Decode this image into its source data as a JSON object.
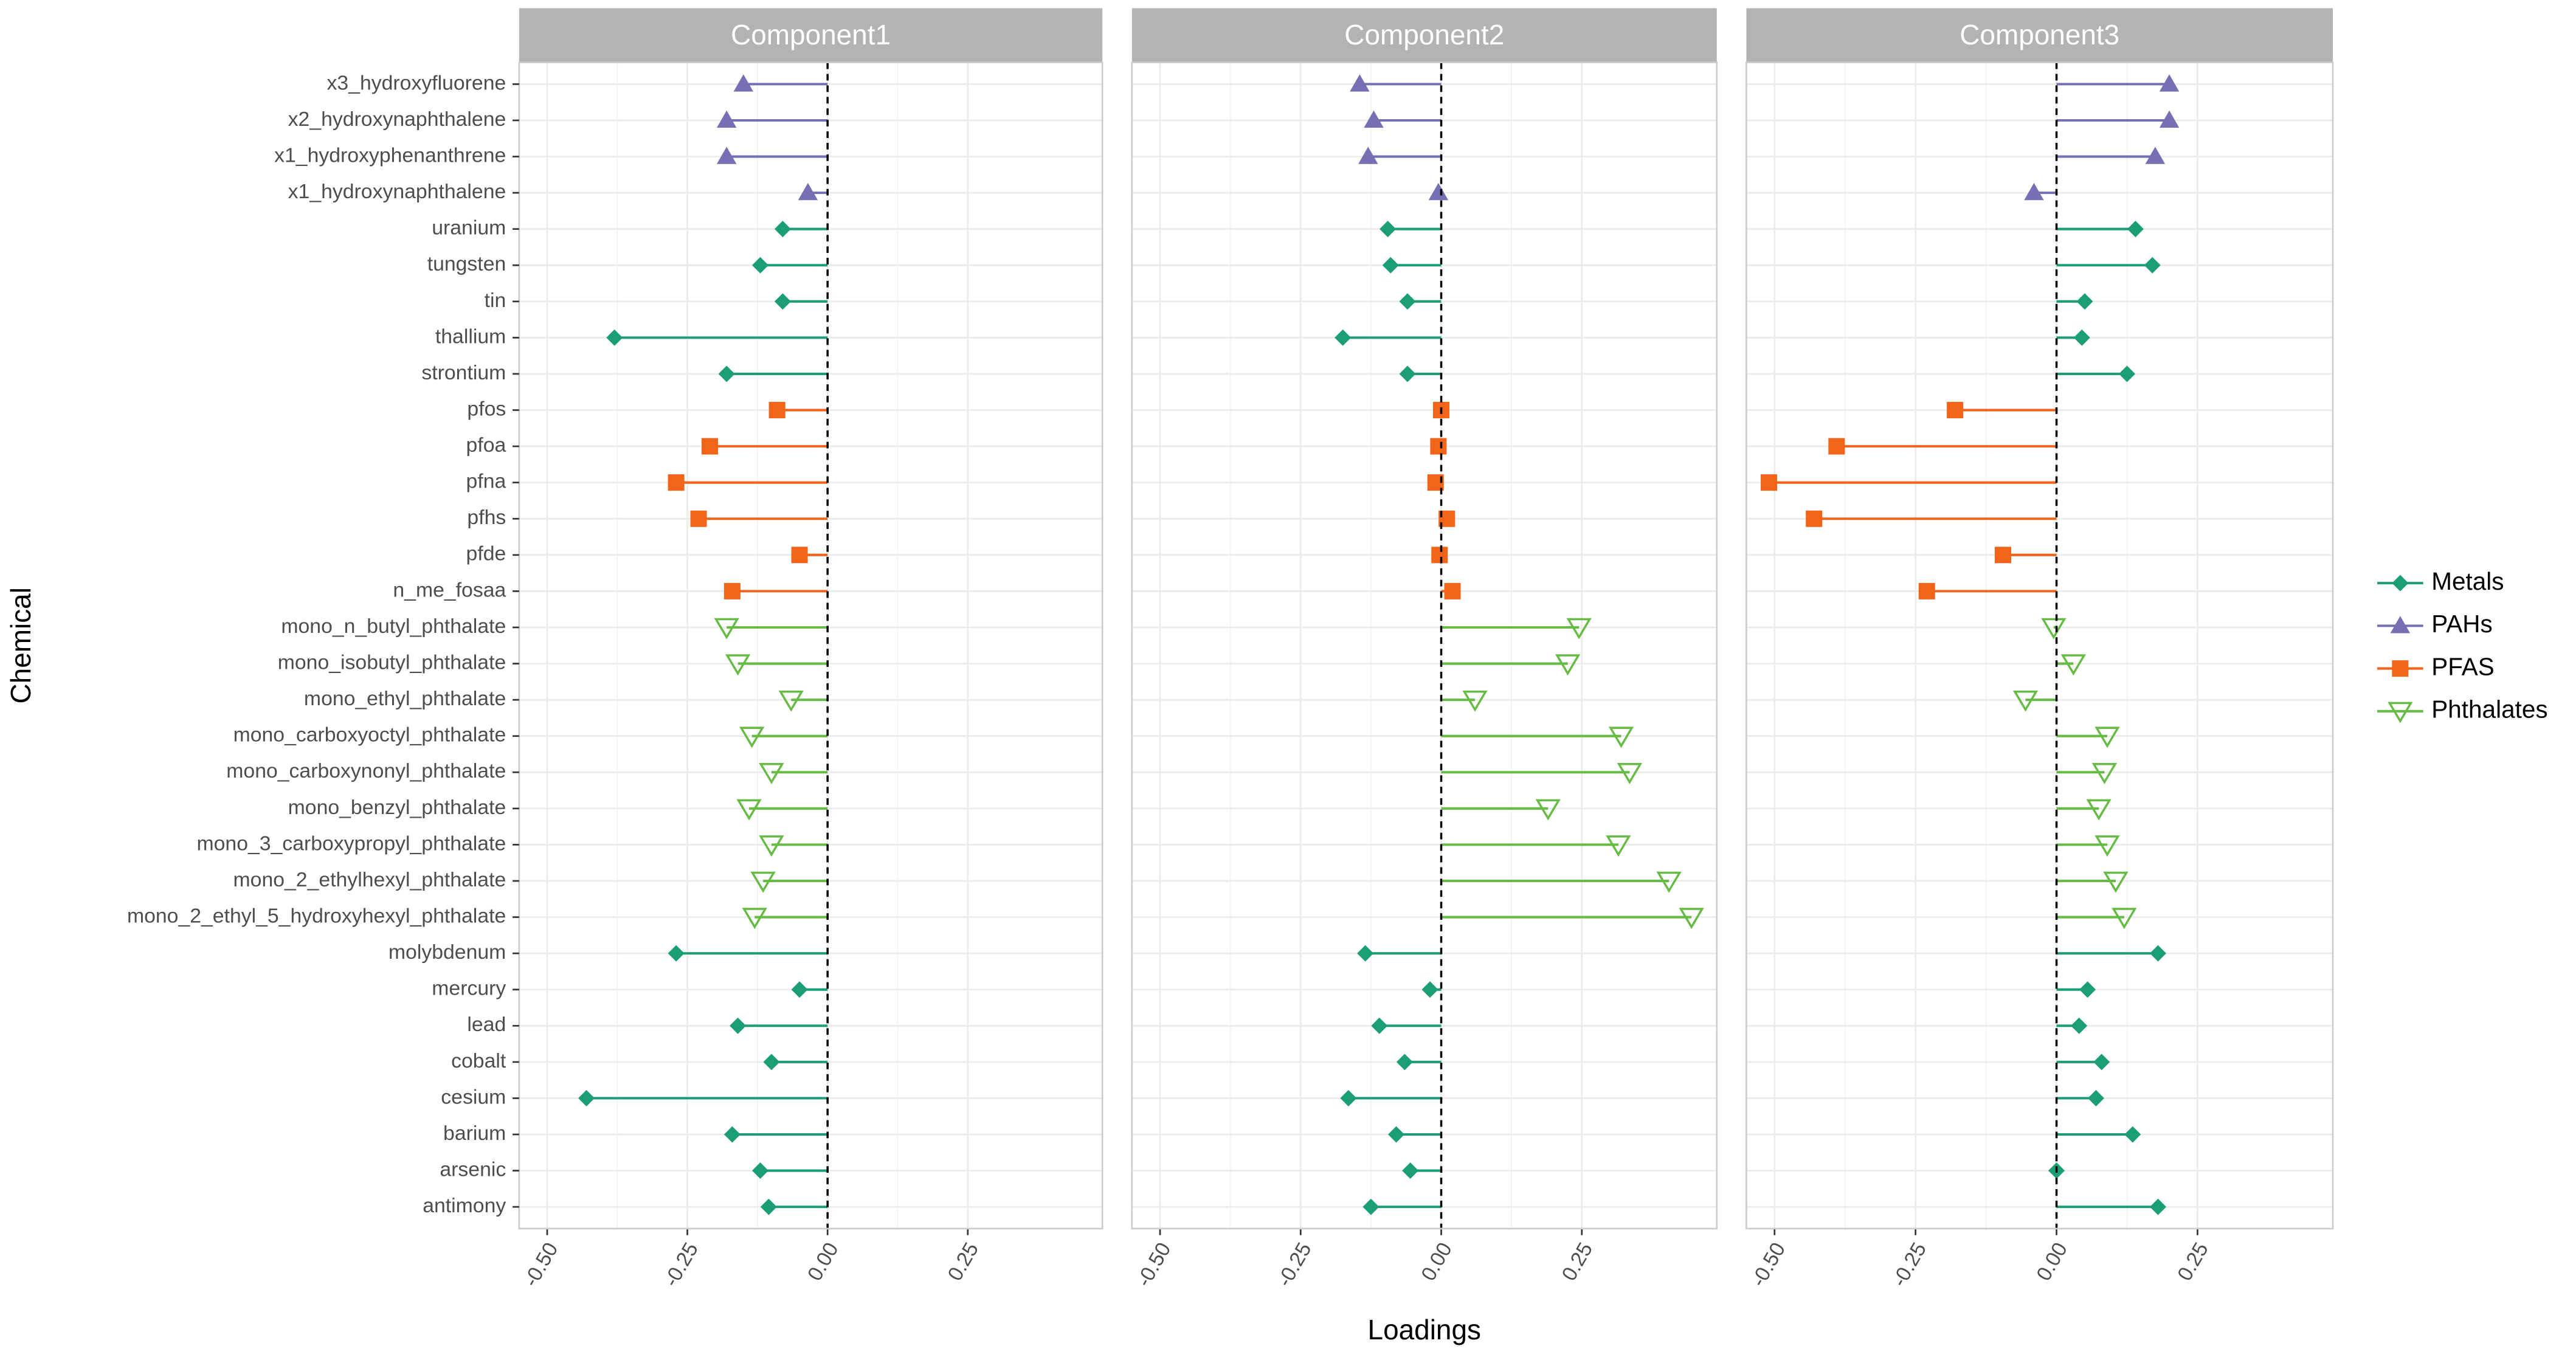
{
  "chart_data": {
    "type": "lollipop",
    "x_label": "Loadings",
    "y_label": "Chemical",
    "xlim": [
      -0.55,
      0.49
    ],
    "xticks": [
      {
        "value": -0.5,
        "label": "-0.50"
      },
      {
        "value": -0.25,
        "label": "-0.25"
      },
      {
        "value": 0,
        "label": "0.00"
      },
      {
        "value": 0.25,
        "label": "0.25"
      }
    ],
    "grid": true,
    "vline": 0,
    "legend_position": "right",
    "categories": [
      "x3_hydroxyfluorene",
      "x2_hydroxynaphthalene",
      "x1_hydroxyphenanthrene",
      "x1_hydroxynaphthalene",
      "uranium",
      "tungsten",
      "tin",
      "thallium",
      "strontium",
      "pfos",
      "pfoa",
      "pfna",
      "pfhs",
      "pfde",
      "n_me_fosaa",
      "mono_n_butyl_phthalate",
      "mono_isobutyl_phthalate",
      "mono_ethyl_phthalate",
      "mono_carboxyoctyl_phthalate",
      "mono_carboxynonyl_phthalate",
      "mono_benzyl_phthalate",
      "mono_3_carboxypropyl_phthalate",
      "mono_2_ethylhexyl_phthalate",
      "mono_2_ethyl_5_hydroxyhexyl_phthalate",
      "molybdenum",
      "mercury",
      "lead",
      "cobalt",
      "cesium",
      "barium",
      "arsenic",
      "antimony"
    ],
    "groups": [
      "PAHs",
      "PAHs",
      "PAHs",
      "PAHs",
      "Metals",
      "Metals",
      "Metals",
      "Metals",
      "Metals",
      "PFAS",
      "PFAS",
      "PFAS",
      "PFAS",
      "PFAS",
      "PFAS",
      "Phthalates",
      "Phthalates",
      "Phthalates",
      "Phthalates",
      "Phthalates",
      "Phthalates",
      "Phthalates",
      "Phthalates",
      "Phthalates",
      "Metals",
      "Metals",
      "Metals",
      "Metals",
      "Metals",
      "Metals",
      "Metals",
      "Metals"
    ],
    "series": [
      {
        "name": "Metals",
        "color": "#1b9e77",
        "marker": "diamond"
      },
      {
        "name": "PAHs",
        "color": "#7570b3",
        "marker": "triangle"
      },
      {
        "name": "PFAS",
        "color": "#f26419",
        "marker": "square"
      },
      {
        "name": "Phthalates",
        "color": "#66bb44",
        "marker": "open-down-triangle"
      }
    ],
    "panels": [
      {
        "title": "Component1",
        "values": [
          -0.15,
          -0.18,
          -0.18,
          -0.035,
          -0.08,
          -0.12,
          -0.08,
          -0.38,
          -0.18,
          -0.09,
          -0.21,
          -0.27,
          -0.23,
          -0.05,
          -0.17,
          -0.18,
          -0.16,
          -0.065,
          -0.135,
          -0.1,
          -0.14,
          -0.1,
          -0.115,
          -0.13,
          -0.27,
          -0.05,
          -0.16,
          -0.1,
          -0.43,
          -0.17,
          -0.12,
          -0.105
        ]
      },
      {
        "title": "Component2",
        "values": [
          -0.145,
          -0.12,
          -0.13,
          -0.005,
          -0.095,
          -0.09,
          -0.06,
          -0.175,
          -0.06,
          0.0,
          -0.005,
          -0.01,
          0.01,
          -0.003,
          0.02,
          0.245,
          0.225,
          0.06,
          0.32,
          0.335,
          0.19,
          0.315,
          0.405,
          0.445,
          -0.135,
          -0.02,
          -0.11,
          -0.065,
          -0.165,
          -0.08,
          -0.055,
          -0.125
        ]
      },
      {
        "title": "Component3",
        "values": [
          0.2,
          0.2,
          0.175,
          -0.04,
          0.14,
          0.17,
          0.05,
          0.045,
          0.125,
          -0.18,
          -0.39,
          -0.51,
          -0.43,
          -0.095,
          -0.23,
          -0.005,
          0.03,
          -0.055,
          0.09,
          0.085,
          0.075,
          0.09,
          0.105,
          0.12,
          0.18,
          0.055,
          0.04,
          0.08,
          0.07,
          0.135,
          0.0,
          0.18
        ]
      }
    ]
  }
}
